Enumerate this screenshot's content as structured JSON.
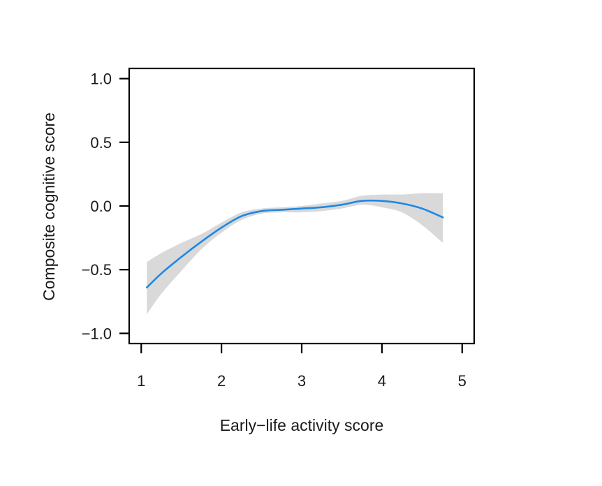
{
  "chart_data": {
    "type": "line",
    "title": "",
    "xlabel": "Early−life activity score",
    "ylabel": "Composite cognitive score",
    "xlim": [
      0.85,
      5.15
    ],
    "ylim": [
      -1.08,
      1.08
    ],
    "x_ticks": [
      1,
      2,
      3,
      4,
      5
    ],
    "x_tick_labels": [
      "1",
      "2",
      "3",
      "4",
      "5"
    ],
    "y_ticks": [
      -1.0,
      -0.5,
      0.0,
      0.5,
      1.0
    ],
    "y_tick_labels": [
      "−1.0",
      "−0.5",
      "0.0",
      "0.5",
      "1.0"
    ],
    "grid": false,
    "legend": "none",
    "colors": {
      "line": "#1e88e5",
      "band": "#d9d9d9",
      "axis": "#000000"
    },
    "series": [
      {
        "x": [
          1.07,
          1.25,
          1.5,
          1.75,
          2.0,
          2.25,
          2.5,
          2.75,
          3.0,
          3.25,
          3.5,
          3.75,
          4.0,
          4.25,
          4.5,
          4.76
        ],
        "y": [
          -0.64,
          -0.53,
          -0.4,
          -0.28,
          -0.17,
          -0.08,
          -0.04,
          -0.03,
          -0.02,
          -0.01,
          0.01,
          0.04,
          0.04,
          0.02,
          -0.02,
          -0.09
        ],
        "lower": [
          -0.85,
          -0.69,
          -0.51,
          -0.34,
          -0.21,
          -0.11,
          -0.06,
          -0.05,
          -0.05,
          -0.04,
          -0.02,
          0.01,
          -0.01,
          -0.05,
          -0.15,
          -0.29
        ],
        "upper": [
          -0.44,
          -0.37,
          -0.29,
          -0.22,
          -0.13,
          -0.05,
          -0.02,
          -0.01,
          0.0,
          0.02,
          0.04,
          0.08,
          0.09,
          0.09,
          0.1,
          0.1
        ]
      }
    ]
  }
}
